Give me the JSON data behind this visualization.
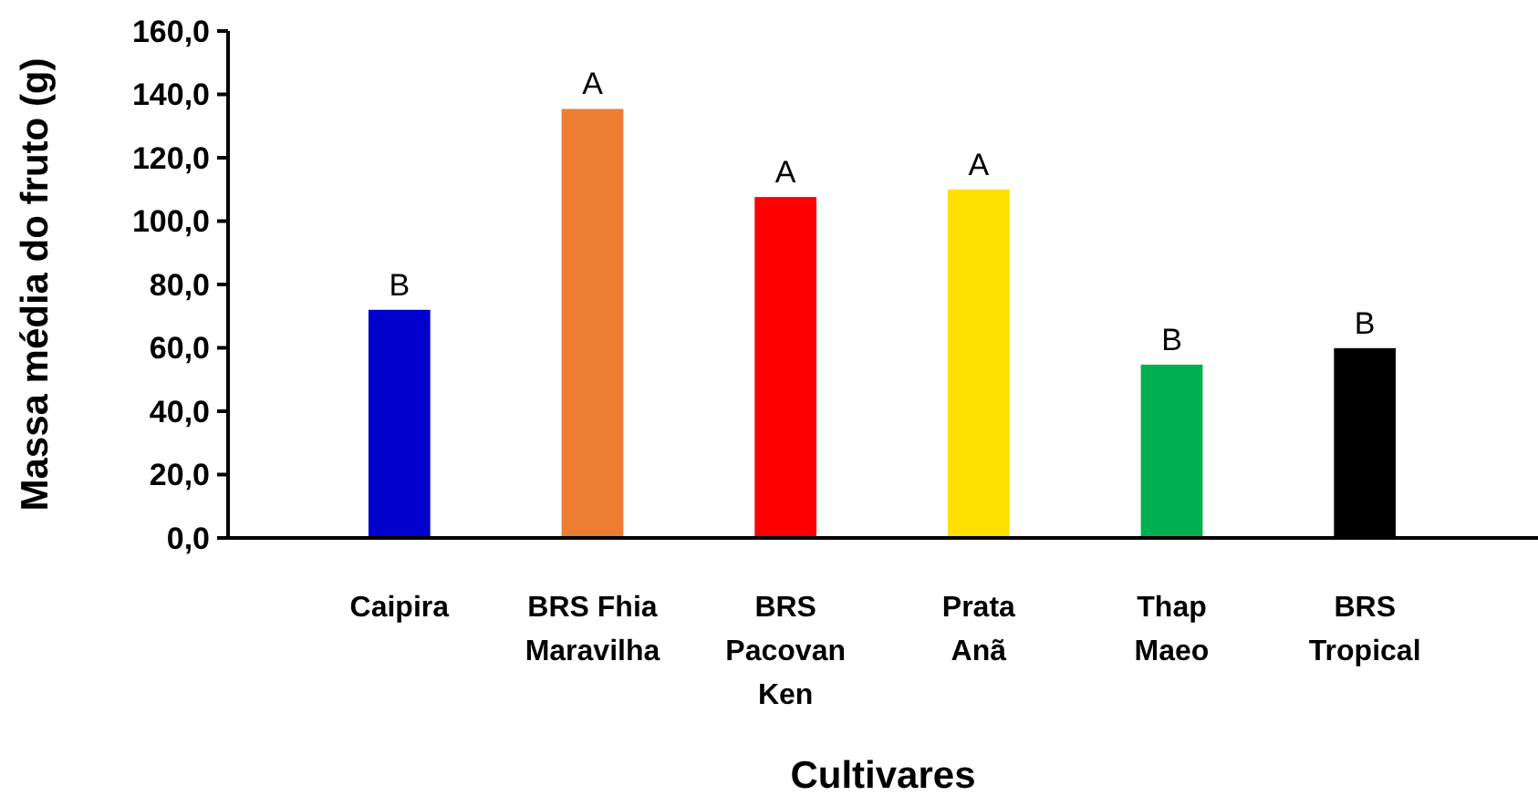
{
  "chart_data": {
    "type": "bar",
    "xlabel": "Cultivares",
    "ylabel": "Massa média do fruto (g)",
    "categories": [
      "Caipira",
      "BRS Fhia\nMaravilha",
      "BRS\nPacovan\nKen",
      "Prata\nAnã",
      "Thap\nMaeo",
      "BRS\nTropical"
    ],
    "values": [
      72,
      135.4,
      107.6,
      110,
      54.7,
      59.9
    ],
    "colors": [
      "#0000cc",
      "#ed7d31",
      "#ff0000",
      "#ffe000",
      "#00b050",
      "#000000"
    ],
    "ylim": [
      0,
      160
    ],
    "yticks": [
      {
        "value": 0,
        "label": "0,0"
      },
      {
        "value": 20,
        "label": "20,0"
      },
      {
        "value": 40,
        "label": "40,0"
      },
      {
        "value": 60,
        "label": "60,0"
      },
      {
        "value": 80,
        "label": "80,0"
      },
      {
        "value": 100,
        "label": "100,0"
      },
      {
        "value": 120,
        "label": "120,0"
      },
      {
        "value": 140,
        "label": "140,0"
      },
      {
        "value": 160,
        "label": "160,0"
      }
    ],
    "annotations": [
      {
        "text": "B",
        "x": "Caipira",
        "y": 72
      },
      {
        "text": "A",
        "x": "BRS Fhia\nMaravilha",
        "y": 135.4
      },
      {
        "text": "A",
        "x": "BRS\nPacovan\nKen",
        "y": 107.6
      },
      {
        "text": "A",
        "x": "Prata\nAnã",
        "y": 110
      },
      {
        "text": "B",
        "x": "Thap\nMaeo",
        "y": 54.7
      },
      {
        "text": "B",
        "x": "BRS\nTropical",
        "y": 59.9
      }
    ],
    "grid": false
  }
}
